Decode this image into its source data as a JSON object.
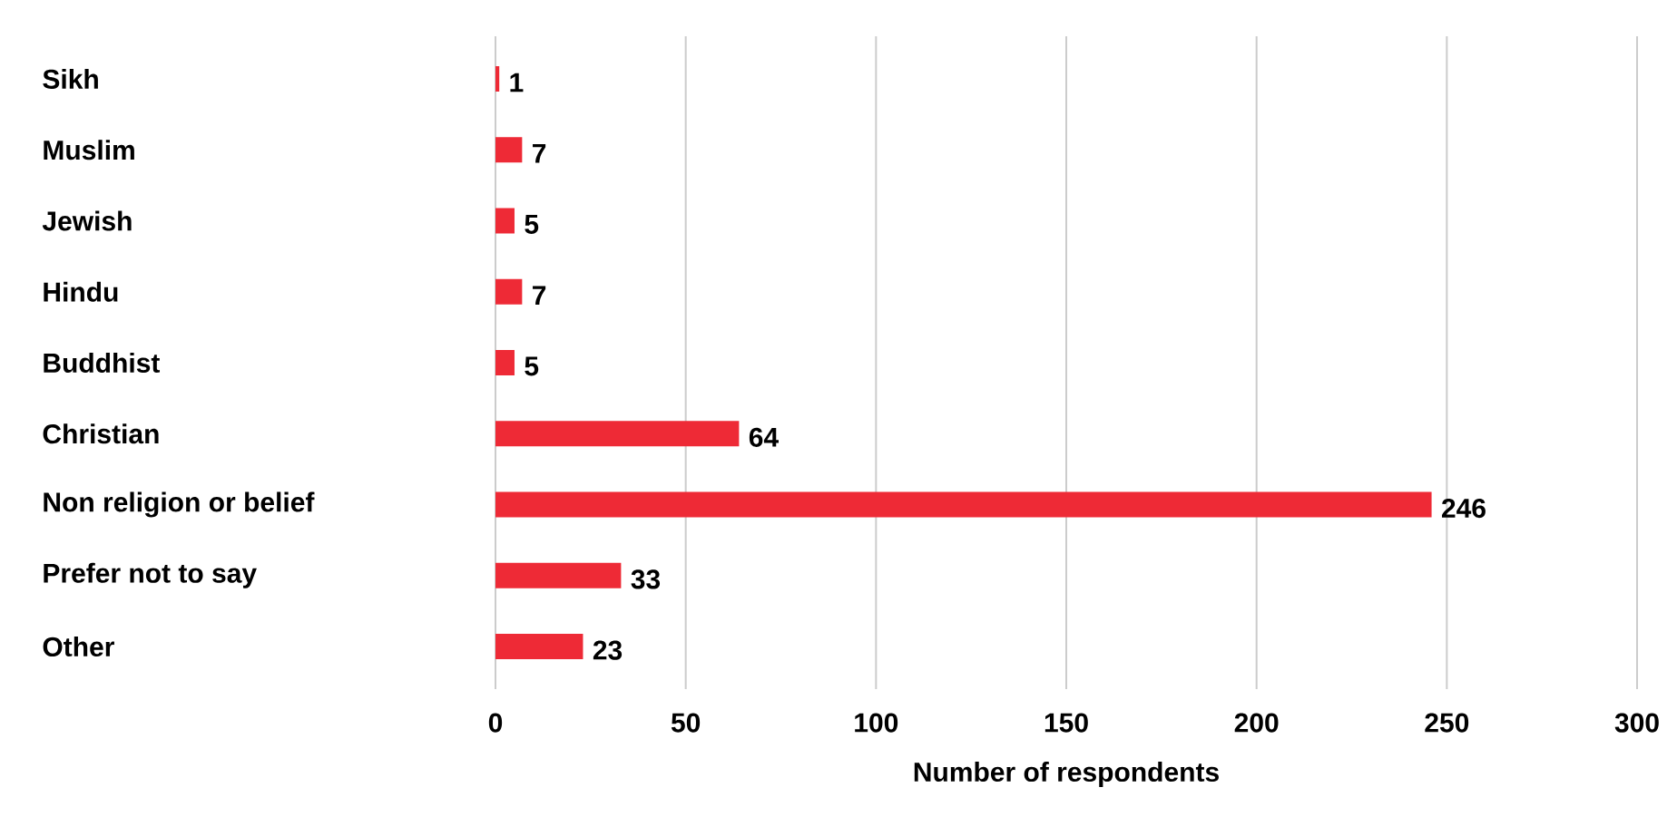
{
  "chart_data": {
    "type": "bar",
    "orientation": "horizontal",
    "xlabel": "Number of respondents",
    "categories": [
      "Sikh",
      "Muslim",
      "Jewish",
      "Hindu",
      "Buddhist",
      "Christian",
      "Non religion or belief",
      "Prefer not to say",
      "Other"
    ],
    "values": [
      1,
      7,
      5,
      7,
      5,
      64,
      246,
      33,
      23
    ],
    "color": "#ee2a36",
    "xlim": [
      0,
      300
    ],
    "xticks": [
      0,
      50,
      100,
      150,
      200,
      250,
      300
    ],
    "grid": "x",
    "data_labels": true
  }
}
